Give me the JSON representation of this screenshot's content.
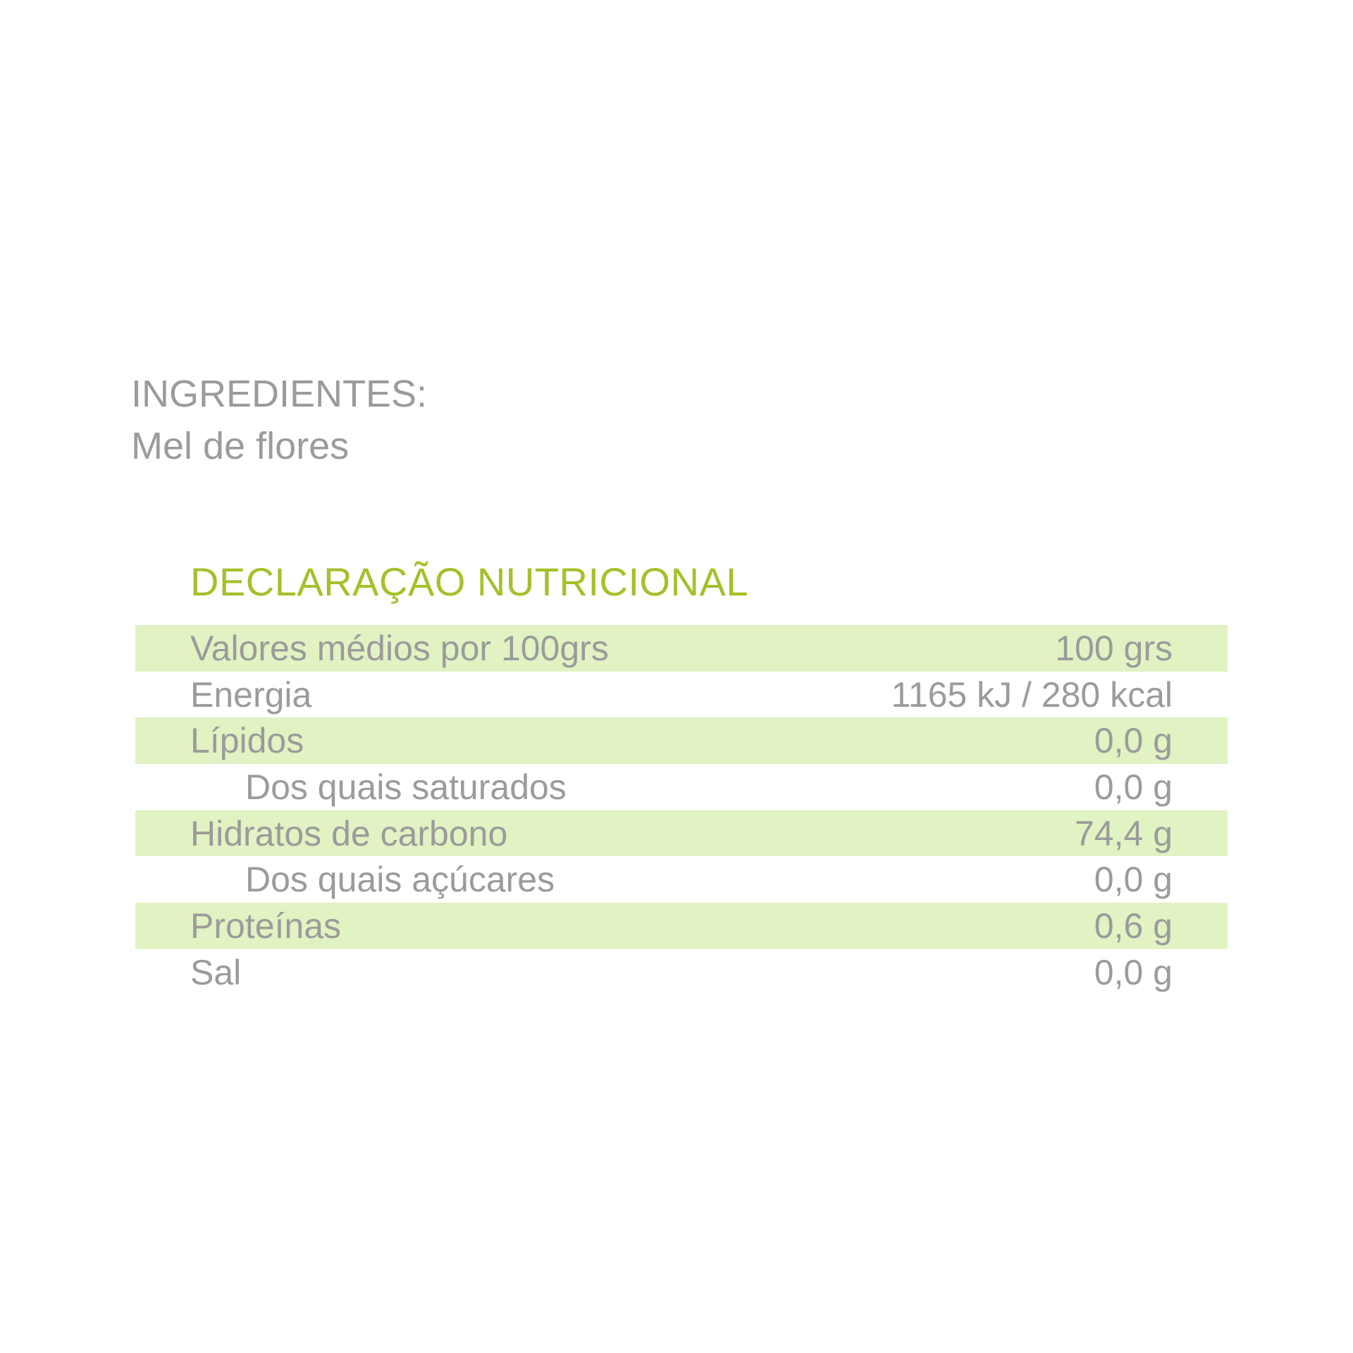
{
  "ingredients": {
    "heading": "INGREDIENTES:",
    "text": "Mel de flores"
  },
  "nutrition": {
    "title": "DECLARAÇÃO NUTRICIONAL",
    "rows": [
      {
        "label": "Valores médios por 100grs",
        "value": "100 grs"
      },
      {
        "label": "Energia",
        "value": "1165 kJ / 280 kcal"
      },
      {
        "label": "Lípidos",
        "value": "0,0 g"
      },
      {
        "label": "Dos quais saturados",
        "value": "0,0 g"
      },
      {
        "label": "Hidratos de carbono",
        "value": "74,4 g"
      },
      {
        "label": "Dos quais açúcares",
        "value": "0,0 g"
      },
      {
        "label": "Proteínas",
        "value": "0,6 g"
      },
      {
        "label": "Sal",
        "value": "0,0 g"
      }
    ]
  },
  "colors": {
    "title": "#a3c12b",
    "band": "#e1f2c3",
    "text": "#9b9b9b"
  }
}
